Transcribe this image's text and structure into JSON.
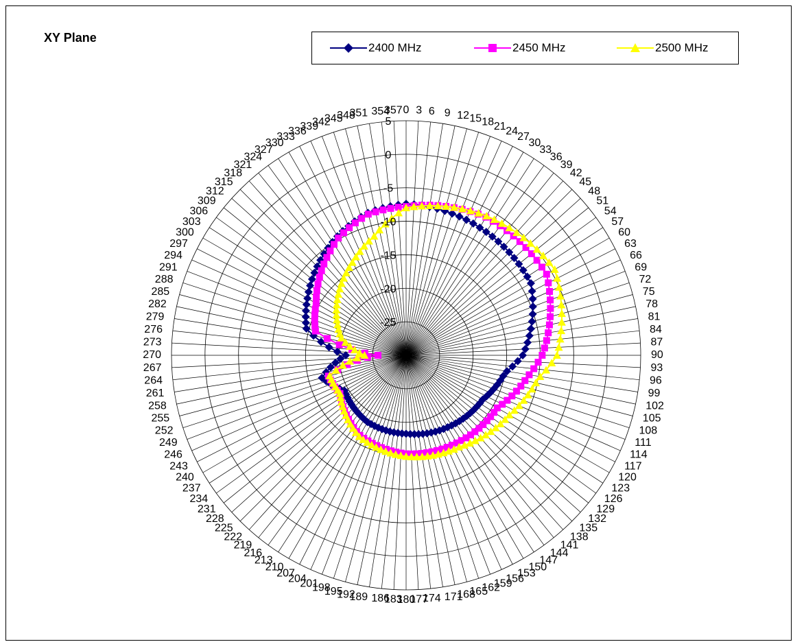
{
  "chart_data": {
    "type": "radar",
    "title": "XY Plane",
    "angle_step_deg": 3,
    "angle_labels": [
      "0",
      "3",
      "6",
      "9",
      "12",
      "15",
      "18",
      "21",
      "24",
      "27",
      "30",
      "33",
      "36",
      "39",
      "42",
      "45",
      "48",
      "51",
      "54",
      "57",
      "60",
      "63",
      "66",
      "69",
      "72",
      "75",
      "78",
      "81",
      "84",
      "87",
      "90",
      "93",
      "96",
      "99",
      "102",
      "105",
      "108",
      "111",
      "114",
      "117",
      "120",
      "123",
      "126",
      "129",
      "132",
      "135",
      "138",
      "141",
      "144",
      "147",
      "150",
      "153",
      "156",
      "159",
      "162",
      "165",
      "168",
      "171",
      "174",
      "177",
      "180",
      "183",
      "186",
      "189",
      "192",
      "195",
      "198",
      "201",
      "204",
      "207",
      "210",
      "213",
      "216",
      "219",
      "222",
      "225",
      "228",
      "231",
      "234",
      "237",
      "240",
      "243",
      "246",
      "249",
      "252",
      "255",
      "258",
      "261",
      "264",
      "267",
      "270",
      "273",
      "276",
      "279",
      "282",
      "285",
      "288",
      "291",
      "294",
      "297",
      "300",
      "303",
      "306",
      "309",
      "312",
      "315",
      "318",
      "321",
      "324",
      "327",
      "330",
      "333",
      "336",
      "339",
      "342",
      "345",
      "348",
      "351",
      "354",
      "357"
    ],
    "radial_ticks": [
      -25,
      -20,
      -15,
      -10,
      -5,
      0,
      5
    ],
    "radial_tick_labels": [
      "-25",
      "-20",
      "-15",
      "-10",
      "-5",
      "0",
      "5"
    ],
    "rlim": [
      -30,
      5
    ],
    "series": [
      {
        "name": "2400 MHz",
        "color": "#000080",
        "marker": "diamond",
        "key_angles": [
          0,
          30,
          60,
          90,
          100,
          120,
          150,
          180,
          210,
          240,
          255,
          270,
          285,
          300,
          330,
          345
        ],
        "key_values": [
          -7.4,
          -8,
          -8.5,
          -12.6,
          -15,
          -16.8,
          -17.6,
          -18.3,
          -18.5,
          -19.4,
          -17,
          -21,
          -14.6,
          -13,
          -9.5,
          -8
        ]
      },
      {
        "name": "2450 MHz",
        "color": "#FF00FF",
        "marker": "square",
        "key_angles": [
          0,
          30,
          60,
          90,
          100,
          120,
          150,
          180,
          210,
          240,
          255,
          270,
          285,
          300,
          330,
          345
        ],
        "key_values": [
          -7.8,
          -6.2,
          -5.8,
          -9.7,
          -11.6,
          -14.3,
          -14.9,
          -15.3,
          -16.2,
          -18.6,
          -18,
          -25.8,
          -16,
          -14.5,
          -9.8,
          -8.2
        ]
      },
      {
        "name": "2500 MHz",
        "color": "#FFFF00",
        "marker": "triangle",
        "key_angles": [
          0,
          30,
          60,
          90,
          100,
          120,
          150,
          180,
          210,
          240,
          255,
          270,
          285,
          300,
          330,
          345
        ],
        "key_values": [
          -8,
          -6,
          -4.4,
          -7.5,
          -10,
          -12.2,
          -14.2,
          -14.9,
          -16,
          -18.6,
          -18.2,
          -23.8,
          -20,
          -18,
          -14,
          -11.6
        ]
      }
    ]
  }
}
